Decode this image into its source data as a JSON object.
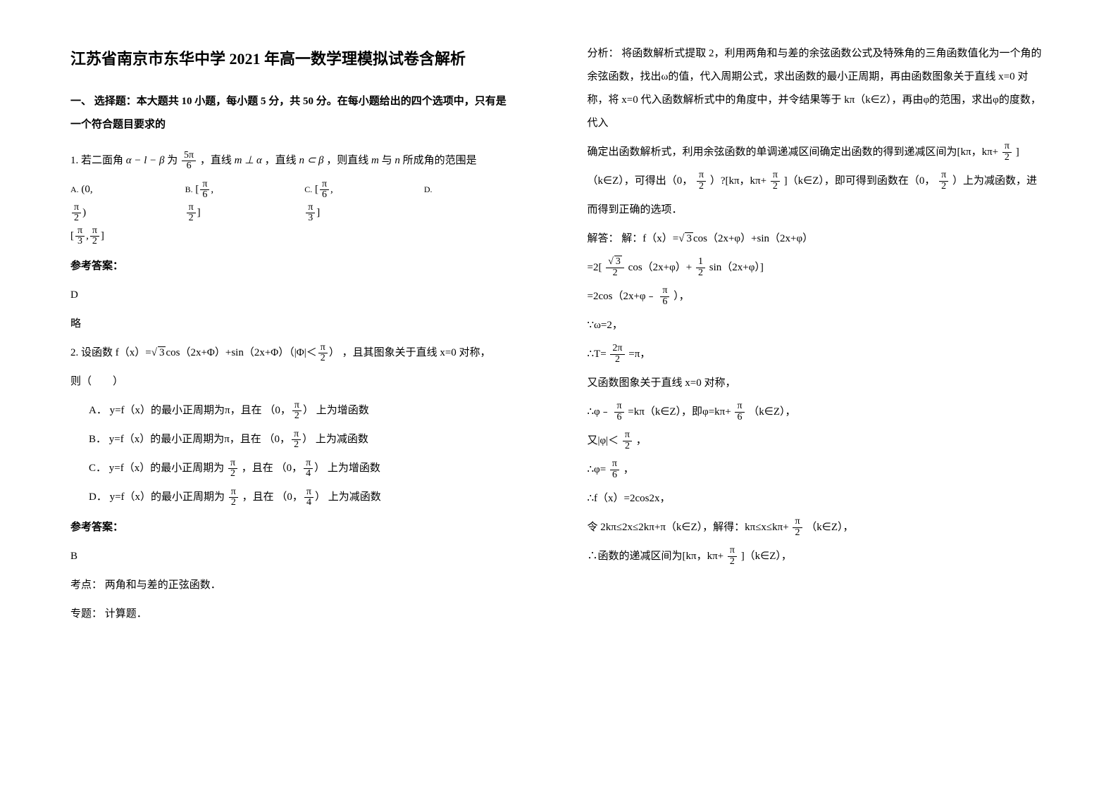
{
  "title": "江苏省南京市东华中学 2021 年高一数学理模拟试卷含解析",
  "section1": "一、 选择题：本大题共 10 小题，每小题 5 分，共 50 分。在每小题给出的四个选项中，只有是一个符合题目要求的",
  "q1": {
    "prefix": "1. 若二面角",
    "mid1": "为",
    "mid2": "，直线",
    "mid3": "，直线",
    "mid4": "，则直线",
    "suffix": "所成角的范围是",
    "optAlabel": "A.",
    "optBlabel": "B.",
    "optClabel": "C.",
    "optDlabel": "D.",
    "ansLabel": "参考答案：",
    "ans": "D",
    "ansExplain": "略"
  },
  "q2": {
    "line1a": "2. 设函数",
    "line1b": "，且其图象关于直线 x=0 对称，",
    "line2": "则（　　）",
    "optA1": "A．  y=f（x）的最小正周期为π，且在",
    "optA2": "上为增函数",
    "optB1": "B．  y=f（x）的最小正周期为π，且在",
    "optB2": "上为减函数",
    "optC1": "C．  y=f（x）的最小正周期为",
    "optC2": "，且在",
    "optC3": "上为增函数",
    "optD1": "D．  y=f（x）的最小正周期为",
    "optD2": "，且在",
    "optD3": "上为减函数",
    "ansLabel": "参考答案：",
    "ans": "B",
    "kp": "考点：  两角和与差的正弦函数．",
    "zt": "专题：  计算题．"
  },
  "right": {
    "fx1": "分析：  将函数解析式提取 2，利用两角和与差的余弦函数公式及特殊角的三角函数值化为一个角的余弦函数，找出ω的值，代入周期公式，求出函数的最小正周期，再由函数图象关于直线 x=0 对称，将 x=0 代入函数解析式中的角度中，并令结果等于 kπ（k∈Z），再由φ的范围，求出φ的度数，代入",
    "fx2a": "确定出函数解析式，利用余弦函数的单调递减区间确定出函数的得到递减区间为[kπ，kπ+",
    "fx2b": "]",
    "fx3a": "（k∈Z），可得出（0，",
    "fx3b": "）?[kπ，kπ+",
    "fx3c": "]（k∈Z），即可得到函数在（0，",
    "fx3d": "）上为减函数，进",
    "fx4": "而得到正确的选项．",
    "s1a": "解答：  解：f（x）=",
    "s1b": "cos（2x+φ）+sin（2x+φ）",
    "s2a": "=2[",
    "s2b": "cos（2x+φ）+",
    "s2c": "sin（2x+φ）]",
    "s3a": "=2cos（2x+φ﹣",
    "s3b": "），",
    "s4": "∵ω=2，",
    "s5a": "∴T=",
    "s5b": "=π，",
    "s6": "又函数图象关于直线 x=0 对称，",
    "s7a": "∴φ﹣",
    "s7b": "=kπ（k∈Z），即φ=kπ+",
    "s7c": "（k∈Z），",
    "s8a": "又|φ|＜",
    "s8b": "，",
    "s9a": "∴φ=",
    "s9b": "，",
    "s10": "∴f（x）=2cos2x，",
    "s11a": "令 2kπ≤2x≤2kπ+π（k∈Z），解得：kπ≤x≤kπ+",
    "s11b": "（k∈Z），",
    "s12a": "∴函数的递减区间为[kπ，kπ+",
    "s12b": "]（k∈Z），"
  }
}
